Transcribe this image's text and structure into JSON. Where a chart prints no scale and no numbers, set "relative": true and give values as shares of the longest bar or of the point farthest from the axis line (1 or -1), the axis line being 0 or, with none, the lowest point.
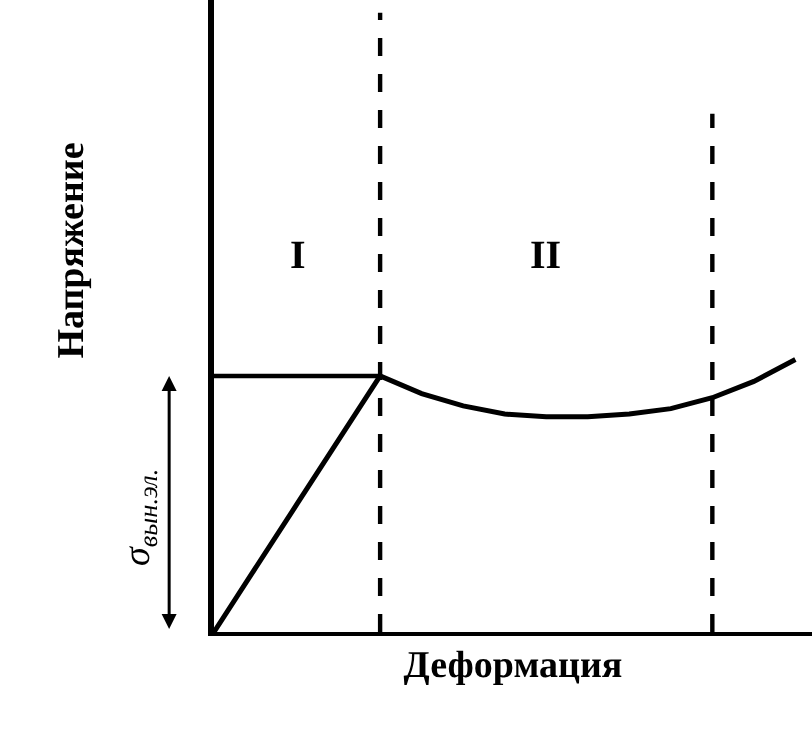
{
  "chart_data": {
    "type": "line",
    "relative": true,
    "xlabel": "Деформация",
    "ylabel": "Напряжение",
    "categories": [
      null,
      null,
      null,
      null,
      null,
      null,
      null,
      null,
      null,
      null,
      null,
      null,
      null,
      null,
      null
    ],
    "series": [
      {
        "color": "#000000",
        "values": [
          0,
          0.235,
          0.47,
          0.705,
          0.94,
          0.875,
          0.83,
          0.8,
          0.79,
          0.79,
          0.8,
          0.82,
          0.86,
          0.92,
          1
        ]
      }
    ],
    "ref_lines": [
      {
        "axis": "y",
        "value": 0.94,
        "label": "σ$_{вын.эл.}$",
        "line_style": "solid"
      }
    ],
    "annotations": [
      "I",
      "II"
    ],
    "marker": "none",
    "line_style": "solid"
  }
}
